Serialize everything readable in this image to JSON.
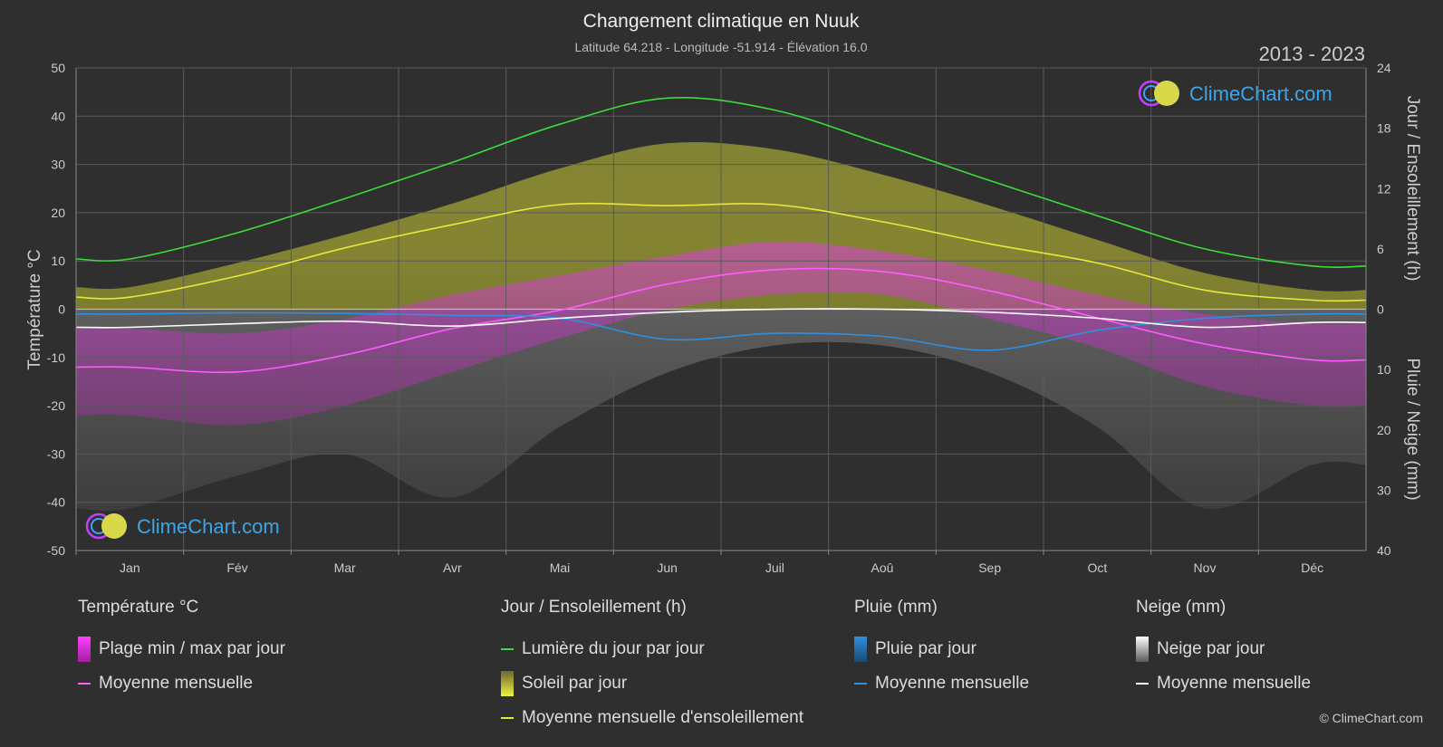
{
  "header": {
    "title": "Changement climatique en Nuuk",
    "subtitle": "Latitude 64.218 - Longitude -51.914 - Élévation 16.0",
    "years": "2013 - 2023"
  },
  "logo": {
    "text": "ClimeChart.com"
  },
  "copyright": "© ClimeChart.com",
  "colors": {
    "background": "#2f2f2f",
    "grid": "#5a5a5a",
    "daylight": "#3cdc3c",
    "sunshine_avg": "#e8e83a",
    "sunshine_bar": "#c8c83a",
    "temp_avg": "#ff5cff",
    "temp_range": "#d23cd2",
    "rain": "#2f8fe0",
    "snow_avg": "#ffffff",
    "snow_bar": "#9a9a9a"
  },
  "chart_data": {
    "type": "line",
    "months": [
      "Jan",
      "Fév",
      "Mar",
      "Avr",
      "Mai",
      "Jun",
      "Juil",
      "Aoû",
      "Sep",
      "Oct",
      "Nov",
      "Déc"
    ],
    "left_axis": {
      "label": "Température °C",
      "min": -50,
      "max": 50,
      "ticks": [
        50,
        40,
        30,
        20,
        10,
        0,
        -10,
        -20,
        -30,
        -40,
        -50
      ]
    },
    "right_axis_top": {
      "label": "Jour / Ensoleillement (h)",
      "min": 0,
      "max": 24,
      "ticks": [
        24,
        18,
        12,
        6,
        0
      ]
    },
    "right_axis_bottom": {
      "label": "Pluie / Neige (mm)",
      "min": 0,
      "max": 40,
      "ticks": [
        0,
        10,
        20,
        30,
        40
      ]
    },
    "series": [
      {
        "name": "Lumière du jour par jour",
        "axis": "hours",
        "values": [
          5.0,
          7.6,
          11.0,
          14.6,
          18.4,
          21.0,
          19.8,
          16.4,
          12.8,
          9.3,
          6.0,
          4.3
        ]
      },
      {
        "name": "Moyenne mensuelle d'ensoleillement",
        "axis": "hours",
        "values": [
          1.2,
          3.3,
          6.1,
          8.4,
          10.4,
          10.3,
          10.4,
          8.7,
          6.5,
          4.6,
          1.9,
          0.9
        ]
      },
      {
        "name": "Moyenne mensuelle",
        "group": "Température °C",
        "axis": "temp",
        "values": [
          -12.0,
          -13.0,
          -9.5,
          -4.0,
          -0.2,
          5.2,
          8.2,
          7.8,
          3.8,
          -1.8,
          -7.2,
          -10.5
        ]
      },
      {
        "name": "Moyenne mensuelle",
        "group": "Pluie (mm)",
        "axis": "precip",
        "values": [
          0.8,
          0.6,
          0.7,
          1.0,
          1.5,
          5.0,
          4.0,
          4.5,
          6.8,
          3.5,
          1.5,
          0.8
        ]
      },
      {
        "name": "Moyenne mensuelle",
        "group": "Neige (mm)",
        "axis": "precip",
        "values": [
          3.0,
          2.4,
          2.0,
          2.8,
          1.5,
          0.5,
          0.0,
          0.0,
          0.5,
          1.5,
          3.0,
          2.2
        ]
      }
    ],
    "temp_range": {
      "name": "Plage min / max par jour",
      "min": [
        -22,
        -24,
        -20,
        -13,
        -6,
        0,
        3,
        3,
        -2,
        -8,
        -16,
        -20
      ],
      "max": [
        -4,
        -5,
        -2,
        3,
        7,
        11,
        14,
        12,
        8,
        3,
        -1,
        -3
      ]
    },
    "sunshine_daily_envelope": [
      2.2,
      4.6,
      7.4,
      10.5,
      14.0,
      16.5,
      15.9,
      13.4,
      10.3,
      6.9,
      3.6,
      1.9
    ],
    "grid": true
  },
  "legend": {
    "groups": [
      {
        "title": "Température °C",
        "items": [
          {
            "label": "Plage min / max par jour",
            "kind": "box",
            "color": "#d23cd2"
          },
          {
            "label": "Moyenne mensuelle",
            "kind": "line",
            "color": "#ff5cff"
          }
        ]
      },
      {
        "title": "Jour / Ensoleillement (h)",
        "items": [
          {
            "label": "Lumière du jour par jour",
            "kind": "line",
            "color": "#3cdc3c"
          },
          {
            "label": "Soleil par jour",
            "kind": "box",
            "color": "#c8c83a"
          },
          {
            "label": "Moyenne mensuelle d'ensoleillement",
            "kind": "line",
            "color": "#e8e83a"
          }
        ]
      },
      {
        "title": "Pluie (mm)",
        "items": [
          {
            "label": "Pluie par jour",
            "kind": "box",
            "color": "#2f8fe0"
          },
          {
            "label": "Moyenne mensuelle",
            "kind": "line",
            "color": "#2f8fe0"
          }
        ]
      },
      {
        "title": "Neige (mm)",
        "items": [
          {
            "label": "Neige par jour",
            "kind": "box",
            "color": "#bbbbbb"
          },
          {
            "label": "Moyenne mensuelle",
            "kind": "line",
            "color": "#ffffff"
          }
        ]
      }
    ]
  }
}
